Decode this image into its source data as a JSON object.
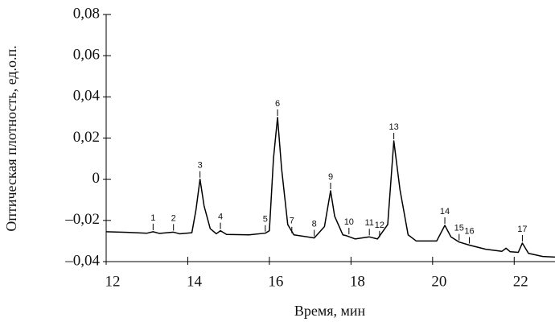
{
  "chart_data": {
    "type": "line",
    "x_label": "Время, мин",
    "y_label": "Оптическая плотность, ед.о.п.",
    "xlim": [
      12,
      23
    ],
    "xticks": [
      12,
      14,
      16,
      18,
      20,
      22
    ],
    "ylim": [
      -0.04,
      0.08
    ],
    "yticks": [
      {
        "value": 0.08,
        "label": "0,08"
      },
      {
        "value": 0.06,
        "label": "0,06"
      },
      {
        "value": 0.04,
        "label": "0,04"
      },
      {
        "value": 0.02,
        "label": "0,02"
      },
      0,
      {
        "value": -0.02,
        "label": "–0,02"
      },
      {
        "value": -0.04,
        "label": "–0,04"
      }
    ],
    "color": "#000000",
    "x": [
      12.0,
      12.5,
      13.0,
      13.15,
      13.3,
      13.65,
      13.8,
      14.1,
      14.2,
      14.3,
      14.4,
      14.55,
      14.7,
      14.8,
      14.95,
      15.5,
      15.9,
      16.0,
      16.1,
      16.2,
      16.3,
      16.45,
      16.6,
      17.1,
      17.35,
      17.5,
      17.6,
      17.8,
      17.9,
      18.1,
      18.45,
      18.65,
      18.9,
      19.05,
      19.2,
      19.4,
      19.6,
      20.1,
      20.3,
      20.45,
      20.65,
      20.9,
      21.3,
      21.7,
      21.8,
      21.9,
      22.1,
      22.2,
      22.35,
      22.7,
      23.0
    ],
    "values": [
      -0.0255,
      -0.0258,
      -0.0262,
      -0.0255,
      -0.0263,
      -0.0257,
      -0.0265,
      -0.026,
      -0.015,
      0.0,
      -0.013,
      -0.024,
      -0.0265,
      -0.025,
      -0.0268,
      -0.027,
      -0.0262,
      -0.025,
      0.01,
      0.03,
      0.005,
      -0.022,
      -0.027,
      -0.0285,
      -0.023,
      -0.0056,
      -0.018,
      -0.027,
      -0.0275,
      -0.029,
      -0.028,
      -0.029,
      -0.022,
      0.0186,
      -0.005,
      -0.027,
      -0.03,
      -0.03,
      -0.0224,
      -0.028,
      -0.0305,
      -0.032,
      -0.034,
      -0.035,
      -0.0335,
      -0.0352,
      -0.0355,
      -0.031,
      -0.036,
      -0.0375,
      -0.0378
    ],
    "peaks": [
      {
        "label": "1",
        "x": 13.15,
        "y": -0.0255
      },
      {
        "label": "2",
        "x": 13.65,
        "y": -0.0257
      },
      {
        "label": "3",
        "x": 14.3,
        "y": 0.0
      },
      {
        "label": "4",
        "x": 14.8,
        "y": -0.025
      },
      {
        "label": "5",
        "x": 15.9,
        "y": -0.0262
      },
      {
        "label": "6",
        "x": 16.2,
        "y": 0.03
      },
      {
        "label": "7",
        "x": 16.55,
        "y": -0.027
      },
      {
        "label": "8",
        "x": 17.1,
        "y": -0.0285
      },
      {
        "label": "9",
        "x": 17.5,
        "y": -0.0056
      },
      {
        "label": "10",
        "x": 17.95,
        "y": -0.0275
      },
      {
        "label": "11",
        "x": 18.45,
        "y": -0.028
      },
      {
        "label": "12",
        "x": 18.7,
        "y": -0.029
      },
      {
        "label": "13",
        "x": 19.05,
        "y": 0.0186
      },
      {
        "label": "14",
        "x": 20.3,
        "y": -0.0224
      },
      {
        "label": "15",
        "x": 20.65,
        "y": -0.0305
      },
      {
        "label": "16",
        "x": 20.9,
        "y": -0.032
      },
      {
        "label": "17",
        "x": 22.2,
        "y": -0.031
      }
    ]
  }
}
